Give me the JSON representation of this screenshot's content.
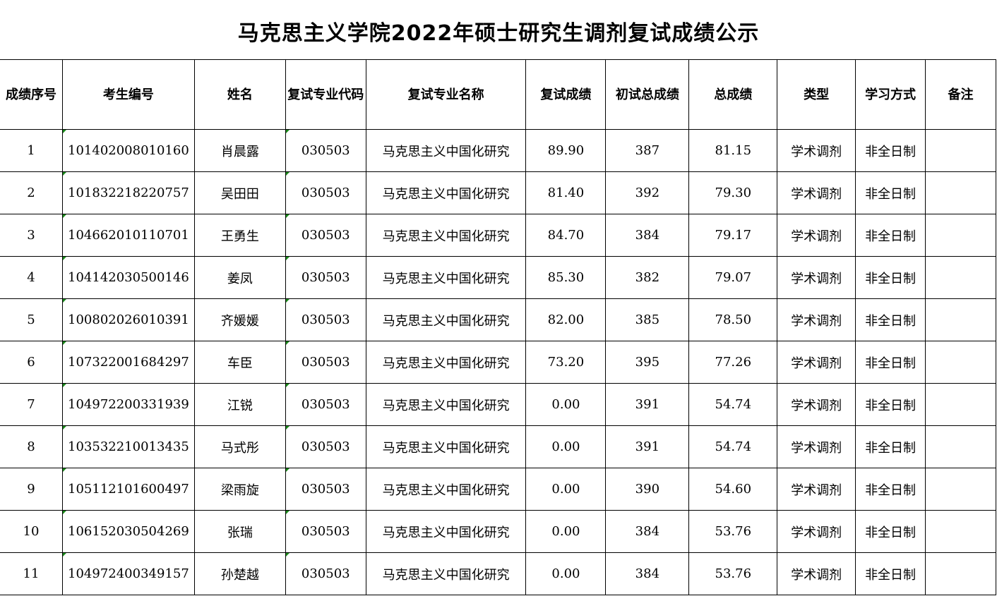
{
  "title": "马克思主义学院2022年硕士研究生调剂复试成绩公示",
  "columns": [
    "成绩序号",
    "考生编号",
    "姓名",
    "复试专业代码",
    "复试专业名称",
    "复试成绩",
    "初试总成绩",
    "总成绩",
    "类型",
    "学习方式",
    "备注"
  ],
  "rows": [
    [
      "1",
      "101402008010160",
      "肖晨露",
      "030503",
      "马克思主义中国化研究",
      "89.90",
      "387",
      "81.15",
      "学术调剂",
      "非全日制",
      ""
    ],
    [
      "2",
      "101832218220757",
      "吴田田",
      "030503",
      "马克思主义中国化研究",
      "81.40",
      "392",
      "79.30",
      "学术调剂",
      "非全日制",
      ""
    ],
    [
      "3",
      "104662010110701",
      "王勇生",
      "030503",
      "马克思主义中国化研究",
      "84.70",
      "384",
      "79.17",
      "学术调剂",
      "非全日制",
      ""
    ],
    [
      "4",
      "104142030500146",
      "姜凤",
      "030503",
      "马克思主义中国化研究",
      "85.30",
      "382",
      "79.07",
      "学术调剂",
      "非全日制",
      ""
    ],
    [
      "5",
      "100802026010391",
      "齐媛媛",
      "030503",
      "马克思主义中国化研究",
      "82.00",
      "385",
      "78.50",
      "学术调剂",
      "非全日制",
      ""
    ],
    [
      "6",
      "107322001684297",
      "车臣",
      "030503",
      "马克思主义中国化研究",
      "73.20",
      "395",
      "77.26",
      "学术调剂",
      "非全日制",
      ""
    ],
    [
      "7",
      "104972200331939",
      "江锐",
      "030503",
      "马克思主义中国化研究",
      "0.00",
      "391",
      "54.74",
      "学术调剂",
      "非全日制",
      ""
    ],
    [
      "8",
      "103532210013435",
      "马式彤",
      "030503",
      "马克思主义中国化研究",
      "0.00",
      "391",
      "54.74",
      "学术调剂",
      "非全日制",
      ""
    ],
    [
      "9",
      "105112101600497",
      "梁雨旋",
      "030503",
      "马克思主义中国化研究",
      "0.00",
      "390",
      "54.60",
      "学术调剂",
      "非全日制",
      ""
    ],
    [
      "10",
      "106152030504269",
      "张瑞",
      "030503",
      "马克思主义中国化研究",
      "0.00",
      "384",
      "53.76",
      "学术调剂",
      "非全日制",
      ""
    ],
    [
      "11",
      "104972400349157",
      "孙楚越",
      "030503",
      "马克思主义中国化研究",
      "0.00",
      "384",
      "53.76",
      "学术调剂",
      "非全日制",
      ""
    ]
  ],
  "colors": {
    "border": "#000000",
    "text_indicator": "#1a8a1a"
  }
}
